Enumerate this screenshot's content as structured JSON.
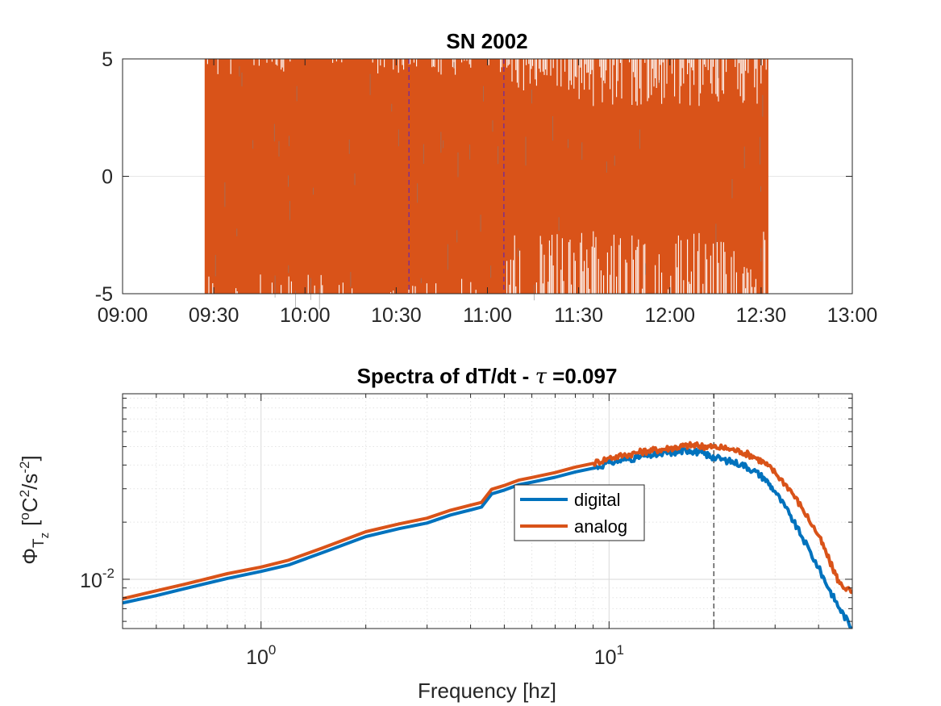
{
  "chart_data": [
    {
      "type": "line",
      "title": "SN 2002",
      "xlabel": "",
      "ylabel": "",
      "x_tick_labels": [
        "09:00",
        "09:30",
        "10:00",
        "10:30",
        "11:00",
        "11:30",
        "12:00",
        "12:30",
        "13:00"
      ],
      "x_ticks_hours": [
        9.0,
        9.5,
        10.0,
        10.5,
        11.0,
        11.5,
        12.0,
        12.5,
        13.0
      ],
      "xlim_hours": [
        9.0,
        13.0
      ],
      "ylim": [
        -5,
        5
      ],
      "y_ticks": [
        -5,
        0,
        5
      ],
      "y_tick_labels": [
        "-5",
        "0",
        "5"
      ],
      "signal_span_hours": [
        9.45,
        12.54
      ],
      "vertical_markers_hours": [
        10.57,
        11.09
      ],
      "series_colors": [
        "#808080",
        "#D95319"
      ],
      "marker_color": "#7E2F8E",
      "grid": "horizontal"
    },
    {
      "type": "line",
      "title_text": "Spectra of dT/dt - ",
      "title_symbol": "τ",
      "title_value": " =0.097",
      "xlabel": "Frequency [hz]",
      "ylabel_phi": "Φ",
      "ylabel_sub_T": "T",
      "ylabel_sub_z": "z",
      "ylabel_open": "[",
      "ylabel_o": "o",
      "ylabel_C": "C",
      "ylabel_sq": "2",
      "ylabel_slash_s": "/s",
      "ylabel_neg2": "-2",
      "ylabel_close": "]",
      "x_scale": "log",
      "y_scale": "log",
      "xlim": [
        0.4,
        50
      ],
      "ylim": [
        0.0055,
        0.095
      ],
      "x_tick_bases": [
        "10",
        "10"
      ],
      "x_tick_exponents": [
        "0",
        "1"
      ],
      "x_tick_values": [
        1,
        10
      ],
      "y_tick_base": "10",
      "y_tick_exponent": "-2",
      "y_tick_value": 0.01,
      "vertical_marker": 20,
      "grid": "on (major and minor)",
      "legend_position": "center",
      "series": [
        {
          "name": "digital",
          "color": "#0072BD",
          "x": [
            0.4,
            0.5,
            0.6,
            0.8,
            1.0,
            1.2,
            1.5,
            2.0,
            2.5,
            3.0,
            3.5,
            4.0,
            4.3,
            4.6,
            5.0,
            5.5,
            6.0,
            7.0,
            8.0,
            9.0,
            10.0,
            11.0,
            12.0,
            13.0,
            14.0,
            15.0,
            16.0,
            17.0,
            18.0,
            19.0,
            20.0,
            22.0,
            24.0,
            26.0,
            28.0,
            30.0,
            33.0,
            36.0,
            40.0,
            43.0,
            46.0,
            50.0
          ],
          "y": [
            0.0075,
            0.0082,
            0.0089,
            0.0101,
            0.011,
            0.0119,
            0.0138,
            0.0168,
            0.0185,
            0.0198,
            0.0218,
            0.0232,
            0.024,
            0.0282,
            0.0295,
            0.0315,
            0.0325,
            0.0345,
            0.0368,
            0.0385,
            0.0412,
            0.0425,
            0.0438,
            0.045,
            0.0455,
            0.0465,
            0.0472,
            0.048,
            0.0468,
            0.0455,
            0.044,
            0.042,
            0.0405,
            0.0375,
            0.034,
            0.029,
            0.022,
            0.0165,
            0.0115,
            0.0088,
            0.007,
            0.0055
          ]
        },
        {
          "name": "analog",
          "color": "#D95319",
          "x": [
            0.4,
            0.5,
            0.6,
            0.8,
            1.0,
            1.2,
            1.5,
            2.0,
            2.5,
            3.0,
            3.5,
            4.0,
            4.3,
            4.6,
            5.0,
            5.5,
            6.0,
            7.0,
            8.0,
            9.0,
            10.0,
            11.0,
            12.0,
            13.0,
            14.0,
            15.0,
            16.0,
            17.0,
            18.0,
            19.0,
            20.0,
            22.0,
            24.0,
            26.0,
            28.0,
            30.0,
            33.0,
            36.0,
            40.0,
            43.0,
            46.0,
            50.0
          ],
          "y": [
            0.0079,
            0.0087,
            0.0094,
            0.0107,
            0.0116,
            0.0126,
            0.0146,
            0.0178,
            0.0196,
            0.021,
            0.0231,
            0.0246,
            0.0254,
            0.0298,
            0.0312,
            0.0333,
            0.0344,
            0.0365,
            0.039,
            0.0408,
            0.0436,
            0.045,
            0.0464,
            0.0477,
            0.0482,
            0.0492,
            0.05,
            0.0508,
            0.0505,
            0.0502,
            0.0498,
            0.0488,
            0.047,
            0.0445,
            0.041,
            0.0365,
            0.03,
            0.0235,
            0.017,
            0.0125,
            0.0095,
            0.0085
          ]
        }
      ]
    }
  ]
}
